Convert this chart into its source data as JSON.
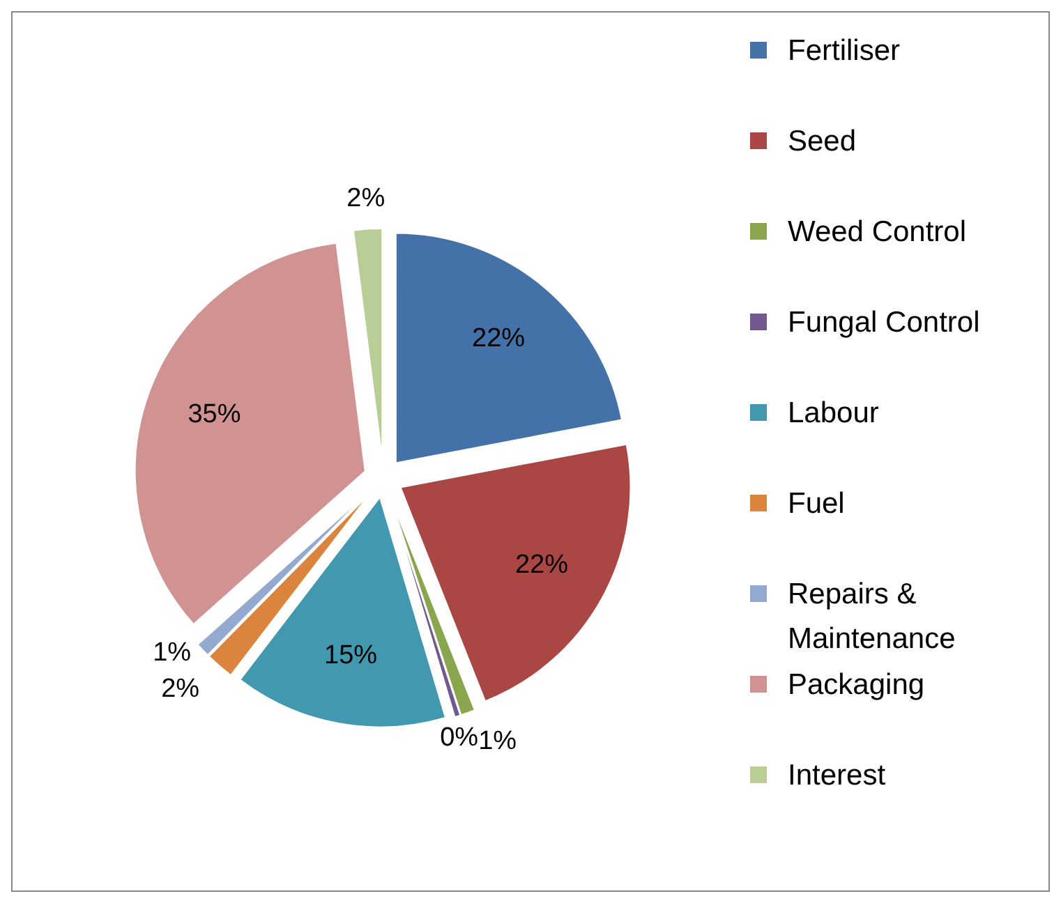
{
  "chart_data": {
    "type": "pie",
    "categories": [
      "Fertiliser",
      "Seed",
      "Weed Control",
      "Fungal Control",
      "Labour",
      "Fuel",
      "Repairs & Maintenance",
      "Packaging",
      "Interest"
    ],
    "values": [
      22,
      22,
      1,
      0.4,
      15,
      2,
      1,
      34.6,
      2
    ],
    "value_labels": [
      "22%",
      "22%",
      "1%",
      "0%",
      "15%",
      "2%",
      "1%",
      "35%",
      "2%"
    ],
    "colors": [
      "#4472a8",
      "#aa4644",
      "#89a54e",
      "#71588f",
      "#4198af",
      "#db843d",
      "#93a9cf",
      "#d19392",
      "#b9cd96"
    ],
    "legend": "right"
  }
}
